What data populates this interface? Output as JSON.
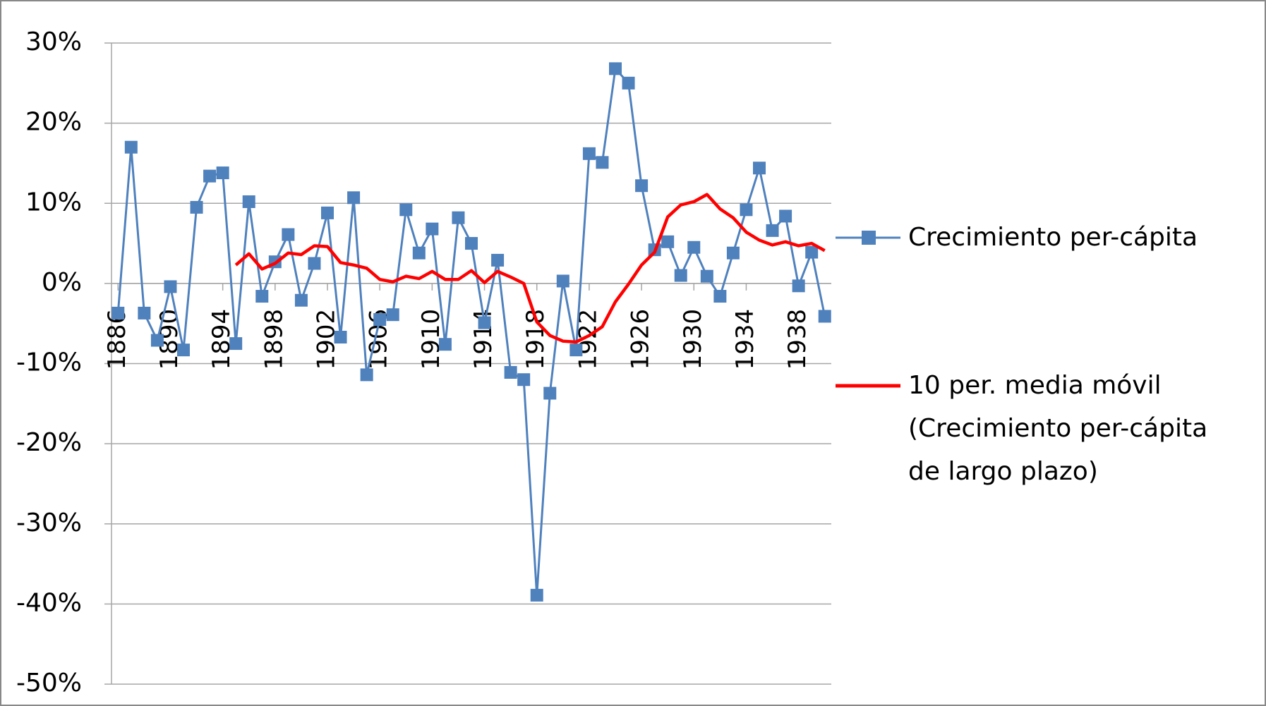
{
  "chart_data": {
    "type": "line",
    "x": [
      1886,
      1887,
      1888,
      1889,
      1890,
      1891,
      1892,
      1893,
      1894,
      1895,
      1896,
      1897,
      1898,
      1899,
      1900,
      1901,
      1902,
      1903,
      1904,
      1905,
      1906,
      1907,
      1908,
      1909,
      1910,
      1911,
      1912,
      1913,
      1914,
      1915,
      1916,
      1917,
      1918,
      1919,
      1920,
      1921,
      1922,
      1923,
      1924,
      1925,
      1926,
      1927,
      1928,
      1929,
      1930,
      1931,
      1932,
      1933,
      1934,
      1935,
      1936,
      1937,
      1938,
      1939,
      1940
    ],
    "series": [
      {
        "name": "Crecimiento per-cápita",
        "color": "#4f81bd",
        "marker": "square",
        "values": [
          -3.7,
          17.0,
          -3.7,
          -7.1,
          -0.4,
          -8.3,
          9.5,
          13.4,
          13.8,
          -7.5,
          10.2,
          -1.6,
          2.7,
          6.1,
          -2.1,
          2.5,
          8.8,
          -6.7,
          10.7,
          -11.4,
          -4.5,
          -3.9,
          9.2,
          3.8,
          6.8,
          -7.6,
          8.2,
          5.0,
          -4.9,
          2.9,
          -11.1,
          -12.0,
          -38.9,
          -13.7,
          0.3,
          -8.3,
          16.2,
          15.1,
          26.8,
          25.0,
          12.2,
          4.2,
          5.2,
          1.0,
          4.5,
          0.9,
          -1.6,
          3.8,
          9.2,
          14.4,
          6.6,
          8.4,
          -0.3,
          3.9,
          -4.1
        ]
      },
      {
        "name": "10 per. media móvil (Crecimiento per-cápita de largo plazo)",
        "color": "#ff0000",
        "marker": "none",
        "values": [
          null,
          null,
          null,
          null,
          null,
          null,
          null,
          null,
          null,
          2.3,
          3.7,
          1.8,
          2.5,
          3.8,
          3.6,
          4.7,
          4.6,
          2.6,
          2.3,
          1.9,
          0.5,
          0.2,
          0.9,
          0.6,
          1.5,
          0.5,
          0.5,
          1.6,
          0.1,
          1.5,
          0.8,
          0.0,
          -4.8,
          -6.5,
          -7.2,
          -7.3,
          -6.5,
          -5.4,
          -2.3,
          -0.1,
          2.3,
          3.9,
          8.3,
          9.8,
          10.2,
          11.1,
          9.3,
          8.2,
          6.4,
          5.4,
          4.8,
          5.2,
          4.7,
          5.0,
          4.1
        ]
      }
    ],
    "xlim": [
      1885.5,
      1940.5
    ],
    "xticks": [
      1886,
      1890,
      1894,
      1898,
      1902,
      1906,
      1910,
      1914,
      1918,
      1922,
      1926,
      1930,
      1934,
      1938
    ],
    "ylim": [
      -50,
      30
    ],
    "yticks": [
      {
        "value": -50,
        "label": "-50%"
      },
      {
        "value": -40,
        "label": "-40%"
      },
      {
        "value": -30,
        "label": "-30%"
      },
      {
        "value": -20,
        "label": "-20%"
      },
      {
        "value": -10,
        "label": "-10%"
      },
      {
        "value": 0,
        "label": "0%"
      },
      {
        "value": 10,
        "label": "10%"
      },
      {
        "value": 20,
        "label": "20%"
      },
      {
        "value": 30,
        "label": "30%"
      }
    ],
    "grid": true,
    "legend": "right"
  }
}
